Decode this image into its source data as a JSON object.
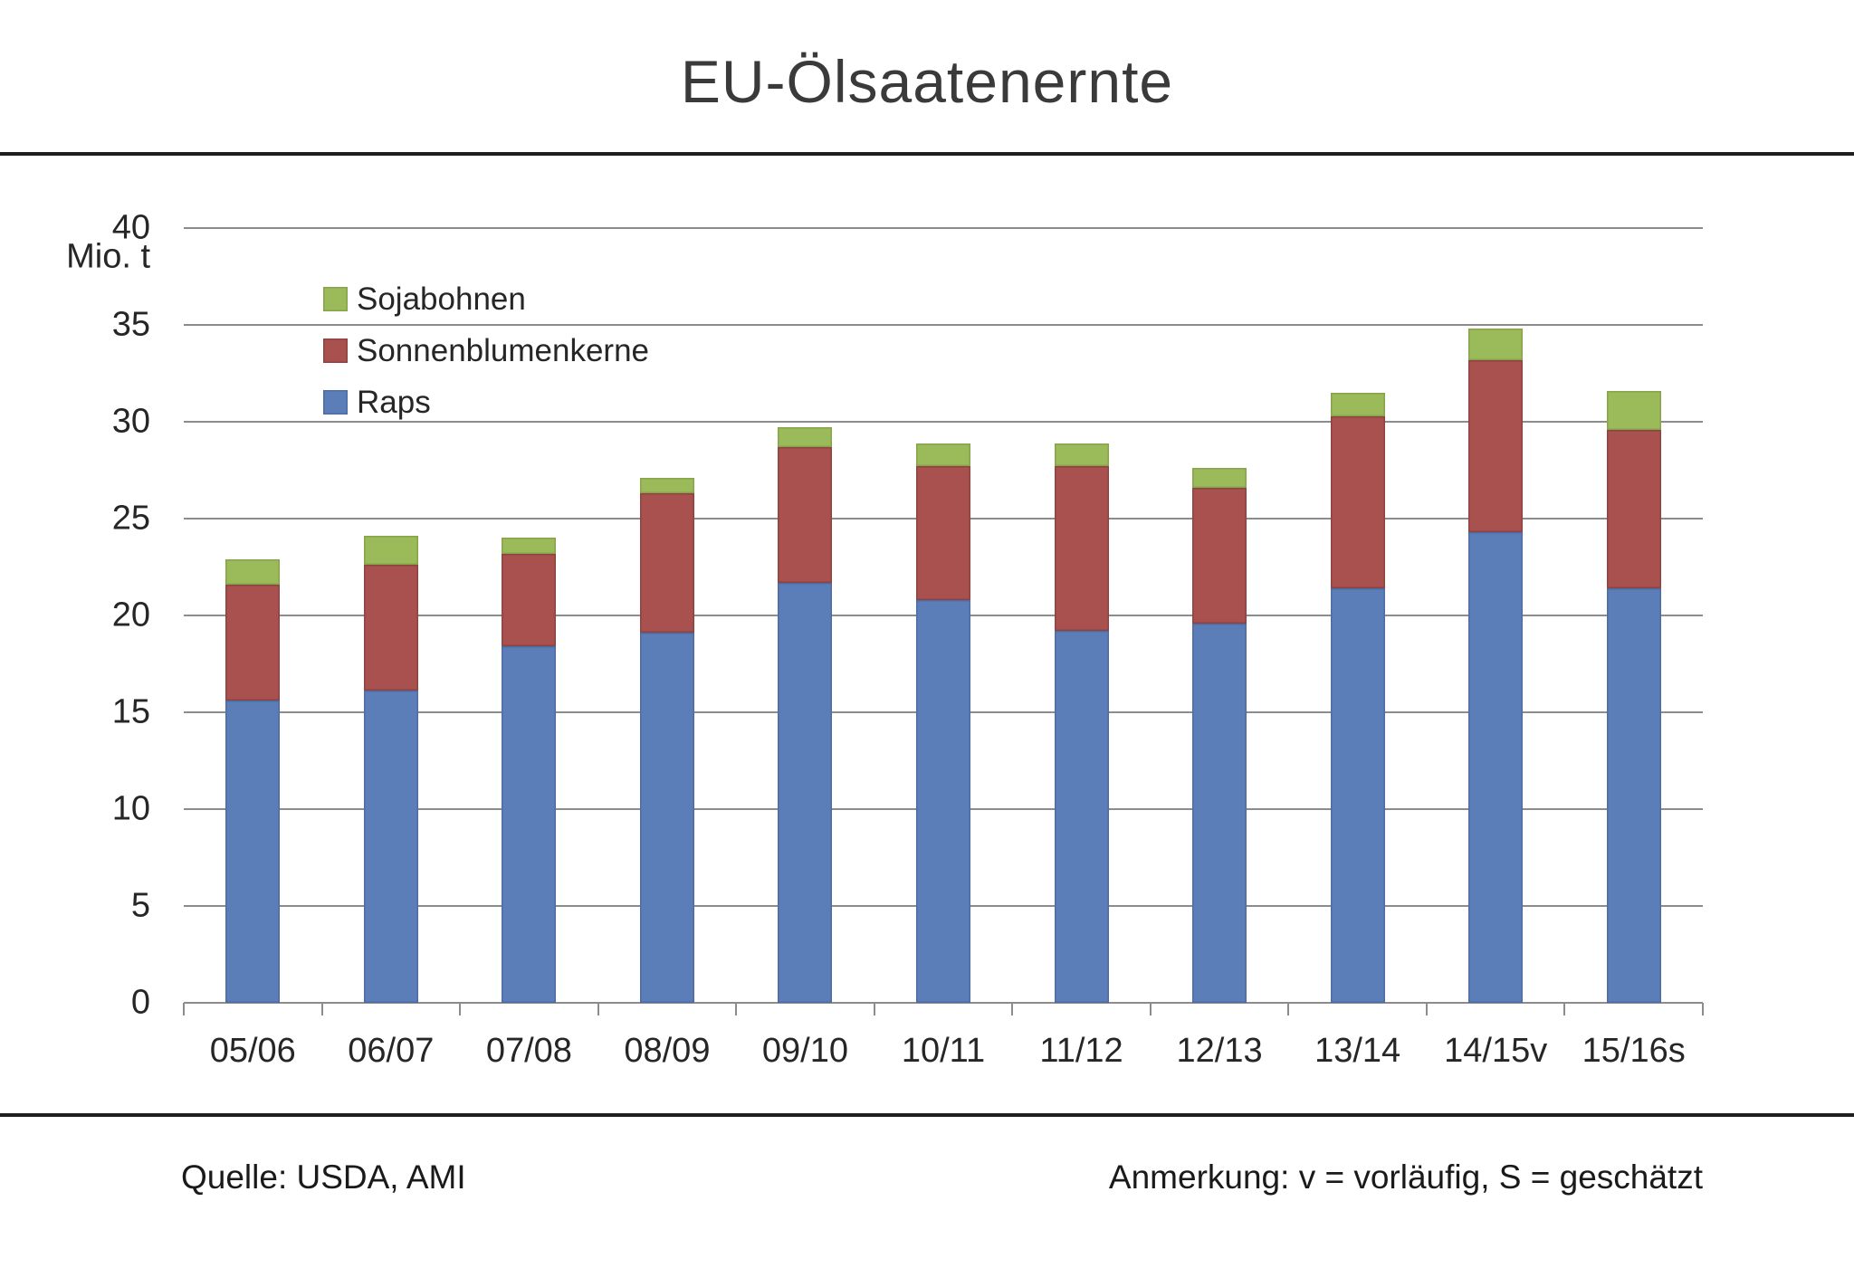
{
  "page": {
    "title": "EU-Ölsaatenernte"
  },
  "colors": {
    "raps": "#5C7EB8",
    "sonnenblumenkerne": "#A8514F",
    "sojabohnen": "#9BBA59",
    "raps_border": "#4E6CA3",
    "sonnenblumenkerne_border": "#8F4341",
    "sojabohnen_border": "#87A44A",
    "gridline": "#8C8C8C",
    "axis_text": "#262626",
    "divider": "#1F1F1F"
  },
  "y_axis": {
    "unit_label": "Mio. t",
    "tick_labels": [
      "0",
      "5",
      "10",
      "15",
      "20",
      "25",
      "30",
      "35",
      "40"
    ],
    "tick_values": [
      0,
      5,
      10,
      15,
      20,
      25,
      30,
      35,
      40
    ]
  },
  "legend": {
    "items": [
      {
        "label": "Sojabohnen",
        "color_key": "sojabohnen"
      },
      {
        "label": "Sonnenblumenkerne",
        "color_key": "sonnenblumenkerne"
      },
      {
        "label": "Raps",
        "color_key": "raps"
      }
    ]
  },
  "footer": {
    "source": "Quelle: USDA, AMI",
    "annotation": "Anmerkung: v = vorläufig, S = geschätzt"
  },
  "chart_data": {
    "type": "bar",
    "stacked": true,
    "title": "EU-Ölsaatenernte",
    "ylabel": "Mio. t",
    "ylim": [
      0,
      40
    ],
    "grid_step": 5,
    "grid": true,
    "legend_position": "inside-upper-left",
    "categories": [
      "05/06",
      "06/07",
      "07/08",
      "08/09",
      "09/10",
      "10/11",
      "11/12",
      "12/13",
      "13/14",
      "14/15v",
      "15/16s"
    ],
    "series": [
      {
        "name": "Raps",
        "color_key": "raps",
        "values": [
          15.6,
          16.1,
          18.4,
          19.1,
          21.7,
          20.8,
          19.2,
          19.6,
          21.4,
          24.3,
          21.4
        ]
      },
      {
        "name": "Sonnenblumenkerne",
        "color_key": "sonnenblumenkerne",
        "values": [
          6.0,
          6.5,
          4.8,
          7.2,
          7.0,
          6.9,
          8.5,
          7.0,
          8.9,
          8.9,
          8.2
        ]
      },
      {
        "name": "Sojabohnen",
        "color_key": "sojabohnen",
        "values": [
          1.3,
          1.5,
          0.8,
          0.8,
          1.0,
          1.2,
          1.2,
          1.0,
          1.2,
          1.6,
          2.0
        ]
      }
    ]
  }
}
